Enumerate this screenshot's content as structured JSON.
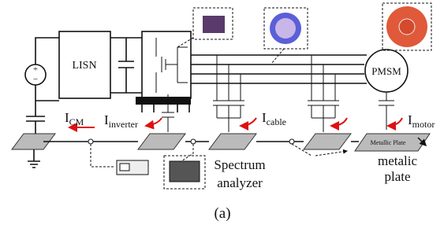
{
  "blocks": {
    "lisn": "LISN",
    "motor": "PMSM"
  },
  "currents": [
    {
      "symbol": "I",
      "subscript": "CM"
    },
    {
      "symbol": "I",
      "subscript": "inverter"
    },
    {
      "symbol": "I",
      "subscript": "cable"
    },
    {
      "symbol": "I",
      "subscript": "motor"
    }
  ],
  "plate_label": "Metallic Plate",
  "annotations": {
    "plate": [
      "metalic",
      "plate"
    ],
    "analyzer": [
      "Spectrum",
      "analyzer"
    ]
  },
  "caption": "(a)"
}
